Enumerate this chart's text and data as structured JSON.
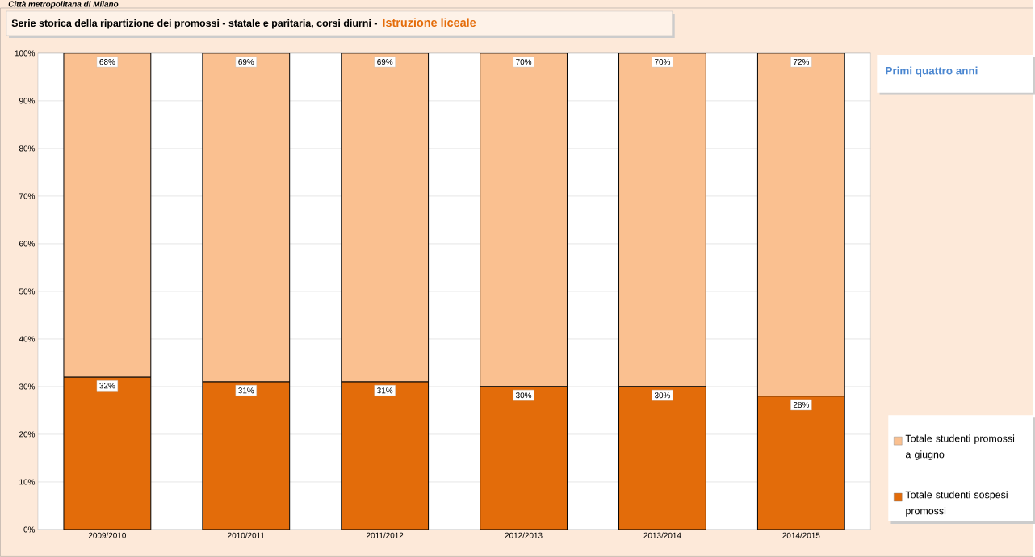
{
  "chart_data": {
    "type": "bar",
    "stacked": true,
    "title": "Serie storica della ripartizione dei promossi -  statale e paritaria, corsi diurni  -",
    "subtitle": "Istruzione liceale",
    "annotations": [
      "Città metropolitana di Milano",
      "Primi quattro anni"
    ],
    "categories": [
      "2009/2010",
      "2010/2011",
      "2011/2012",
      "2012/2013",
      "2013/2014",
      "2014/2015"
    ],
    "series": [
      {
        "name": "Totale studenti sospesi promossi",
        "color": "#e36c0a",
        "values": [
          32,
          31,
          31,
          30,
          30,
          28
        ],
        "value_labels": [
          "32%",
          "31%",
          "31%",
          "30%",
          "30%",
          "28%"
        ]
      },
      {
        "name": "Totale studenti promossi a giugno",
        "color": "#fac090",
        "values": [
          68,
          69,
          69,
          70,
          70,
          72
        ],
        "value_labels": [
          "68%",
          "69%",
          "69%",
          "70%",
          "70%",
          "72%"
        ]
      }
    ],
    "ylim": [
      0,
      100
    ],
    "yticks": [
      {
        "value": 0,
        "label": "0%"
      },
      {
        "value": 10,
        "label": "10%"
      },
      {
        "value": 20,
        "label": "20%"
      },
      {
        "value": 30,
        "label": "30%"
      },
      {
        "value": 40,
        "label": "40%"
      },
      {
        "value": 50,
        "label": "50%"
      },
      {
        "value": 60,
        "label": "60%"
      },
      {
        "value": 70,
        "label": "70%"
      },
      {
        "value": 80,
        "label": "80%"
      },
      {
        "value": 90,
        "label": "90%"
      },
      {
        "value": 100,
        "label": "100%"
      }
    ],
    "grid": "y",
    "legend": "right"
  }
}
